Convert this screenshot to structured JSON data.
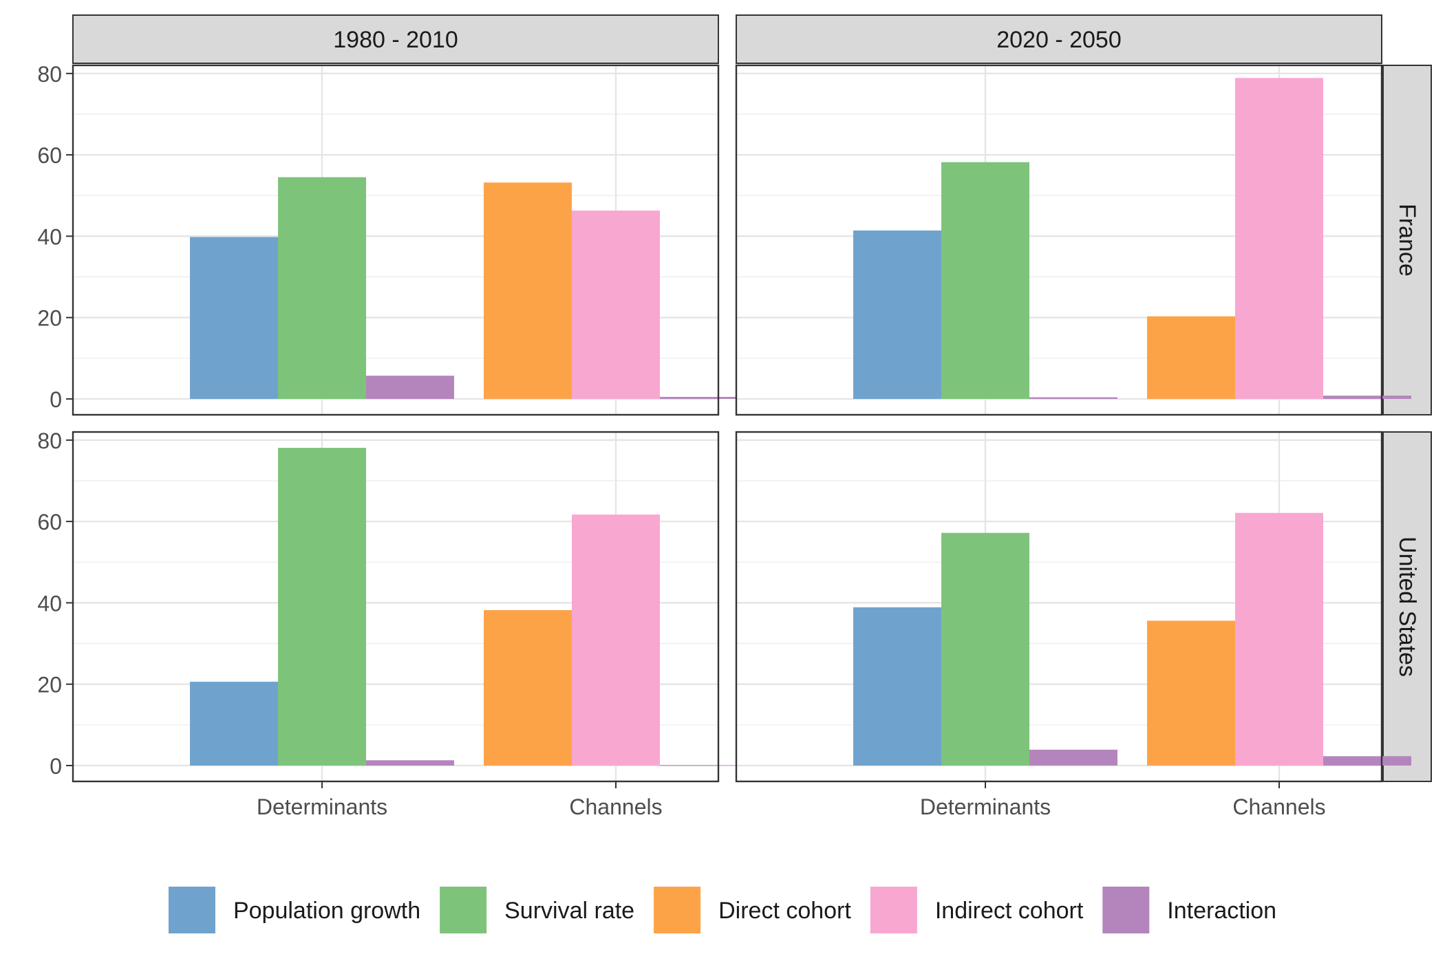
{
  "chart_data": {
    "type": "bar",
    "facet_columns": [
      "1980 - 2010",
      "2020 - 2050"
    ],
    "facet_rows": [
      "France",
      "United States"
    ],
    "categories": [
      "Determinants",
      "Channels"
    ],
    "ylim": [
      -3.9,
      82
    ],
    "yticks": [
      0,
      20,
      40,
      60,
      80
    ],
    "grid": true,
    "legend_position": "bottom",
    "legend": [
      {
        "name": "Population growth",
        "color": "#6FA3CE"
      },
      {
        "name": "Survival rate",
        "color": "#7EC37A"
      },
      {
        "name": "Direct cohort",
        "color": "#FDA347"
      },
      {
        "name": "Indirect cohort",
        "color": "#F8A7D1"
      },
      {
        "name": "Interaction",
        "color": "#B485BD"
      }
    ],
    "panels": [
      {
        "row": "France",
        "col": "1980 - 2010",
        "groups": [
          {
            "category": "Determinants",
            "bars": [
              {
                "series": "Population growth",
                "value": 39.8
              },
              {
                "series": "Survival rate",
                "value": 54.5
              },
              {
                "series": "Interaction",
                "value": 5.7
              }
            ]
          },
          {
            "category": "Channels",
            "bars": [
              {
                "series": "Direct cohort",
                "value": 53.2
              },
              {
                "series": "Indirect cohort",
                "value": 46.3
              },
              {
                "series": "Interaction",
                "value": 0.5
              }
            ]
          }
        ]
      },
      {
        "row": "France",
        "col": "2020 - 2050",
        "groups": [
          {
            "category": "Determinants",
            "bars": [
              {
                "series": "Population growth",
                "value": 41.4
              },
              {
                "series": "Survival rate",
                "value": 58.2
              },
              {
                "series": "Interaction",
                "value": 0.4
              }
            ]
          },
          {
            "category": "Channels",
            "bars": [
              {
                "series": "Direct cohort",
                "value": 20.3
              },
              {
                "series": "Indirect cohort",
                "value": 78.9
              },
              {
                "series": "Interaction",
                "value": 0.8
              }
            ]
          }
        ]
      },
      {
        "row": "United States",
        "col": "1980 - 2010",
        "groups": [
          {
            "category": "Determinants",
            "bars": [
              {
                "series": "Population growth",
                "value": 20.6
              },
              {
                "series": "Survival rate",
                "value": 78.1
              },
              {
                "series": "Interaction",
                "value": 1.3
              }
            ]
          },
          {
            "category": "Channels",
            "bars": [
              {
                "series": "Direct cohort",
                "value": 38.2
              },
              {
                "series": "Indirect cohort",
                "value": 61.7
              },
              {
                "series": "Interaction",
                "value": 0.1
              }
            ]
          }
        ]
      },
      {
        "row": "United States",
        "col": "2020 - 2050",
        "groups": [
          {
            "category": "Determinants",
            "bars": [
              {
                "series": "Population growth",
                "value": 38.9
              },
              {
                "series": "Survival rate",
                "value": 57.2
              },
              {
                "series": "Interaction",
                "value": 3.9
              }
            ]
          },
          {
            "category": "Channels",
            "bars": [
              {
                "series": "Direct cohort",
                "value": 35.6
              },
              {
                "series": "Indirect cohort",
                "value": 62.1
              },
              {
                "series": "Interaction",
                "value": 2.3
              }
            ]
          }
        ]
      }
    ]
  }
}
